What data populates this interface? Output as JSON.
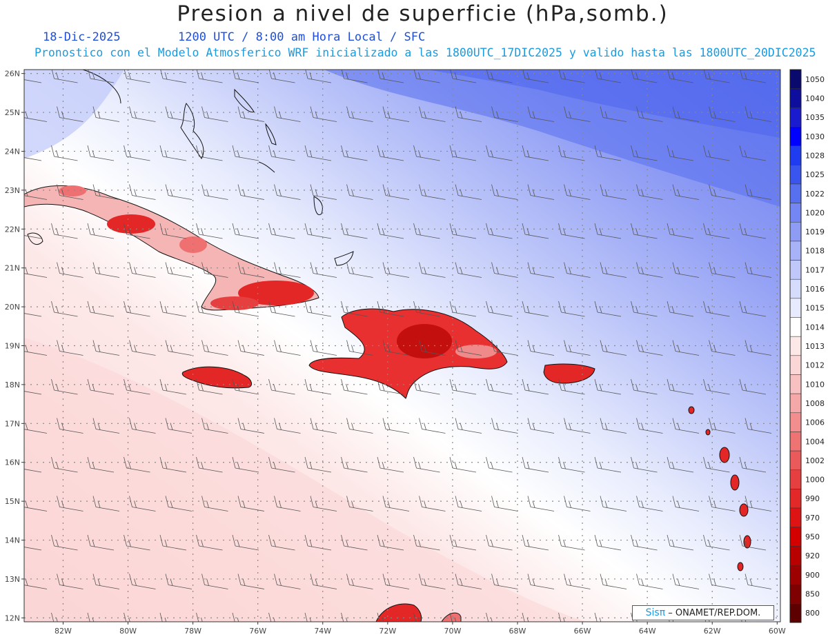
{
  "header": {
    "title": "Presion a nivel de superficie (hPa,somb.)",
    "date": "18-Dic-2025",
    "time_info": "1200 UTC / 8:00 am Hora Local / SFC",
    "subtitle": "Pronostico con el Modelo Atmosferico WRF inicializado a las 1800UTC_17DIC2025 y valido hasta las  1800UTC_20DIC2025"
  },
  "map": {
    "lat_labels": [
      "26N",
      "25N",
      "24N",
      "23N",
      "22N",
      "21N",
      "20N",
      "19N",
      "18N",
      "17N",
      "16N",
      "15N",
      "14N",
      "13N",
      "12N"
    ],
    "lon_labels": [
      "82W",
      "80W",
      "78W",
      "76W",
      "74W",
      "72W",
      "70W",
      "68W",
      "66W",
      "64W",
      "62W",
      "60W"
    ],
    "lat_range": [
      11.9,
      26.1
    ],
    "lon_range": [
      -83.2,
      -59.9
    ]
  },
  "colorbar": {
    "labels": [
      "1050",
      "1040",
      "1035",
      "1030",
      "1028",
      "1025",
      "1022",
      "1020",
      "1019",
      "1018",
      "1017",
      "1016",
      "1015",
      "1014",
      "1013",
      "1012",
      "1010",
      "1008",
      "1006",
      "1004",
      "1002",
      "1000",
      "990",
      "970",
      "950",
      "920",
      "900",
      "850",
      "800"
    ],
    "colors": [
      "#0a0a6e",
      "#0d0d9e",
      "#1a1acf",
      "#0000ff",
      "#1f3cf0",
      "#3a55ee",
      "#5670f0",
      "#7386f2",
      "#8e9cf4",
      "#a7b2f7",
      "#bfc8f9",
      "#d6dcfb",
      "#e7ebfd",
      "#ffffff",
      "#fde8e8",
      "#fbd6d6",
      "#f8c1c1",
      "#f5a8a8",
      "#f28e8e",
      "#ee7373",
      "#ea5a5a",
      "#e63f3f",
      "#e22828",
      "#de1414",
      "#d40000",
      "#b80000",
      "#9c0000",
      "#7e0000",
      "#5e0000"
    ]
  },
  "credit": {
    "logo": "Sisπ",
    "text": "– ONAMET/REP.DOM."
  }
}
